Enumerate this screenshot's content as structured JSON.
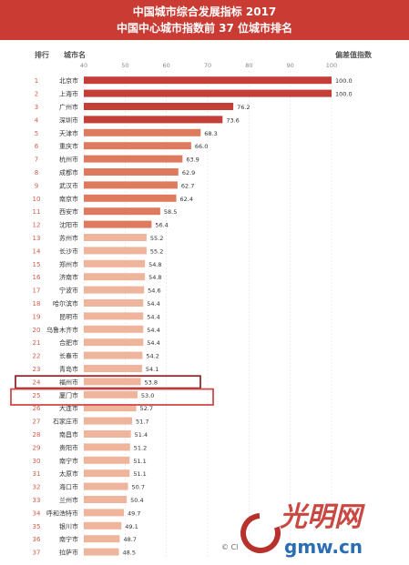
{
  "chart_data": {
    "type": "bar",
    "orientation": "horizontal",
    "title": "中国城市综合发展指标 2017",
    "subtitle": "中国中心城市指数前 37 位城市排名",
    "rank_header": "排行",
    "category_header": "城市名",
    "value_header": "偏差值指数",
    "xlim": [
      40,
      100
    ],
    "x_ticks": [
      40,
      50,
      60,
      70,
      80,
      90,
      100
    ],
    "grid": true,
    "ranks": [
      1,
      2,
      3,
      4,
      5,
      6,
      7,
      8,
      9,
      10,
      11,
      12,
      13,
      14,
      15,
      16,
      17,
      18,
      19,
      20,
      21,
      22,
      23,
      24,
      25,
      26,
      27,
      28,
      29,
      30,
      31,
      32,
      33,
      34,
      35,
      36,
      37
    ],
    "categories": [
      "北京市",
      "上海市",
      "广州市",
      "深圳市",
      "天津市",
      "重庆市",
      "杭州市",
      "成都市",
      "武汉市",
      "南京市",
      "西安市",
      "沈阳市",
      "苏州市",
      "长沙市",
      "郑州市",
      "济南市",
      "宁波市",
      "哈尔滨市",
      "昆明市",
      "乌鲁木齐市",
      "合肥市",
      "长春市",
      "青岛市",
      "福州市",
      "厦门市",
      "大连市",
      "石家庄市",
      "南昌市",
      "贵阳市",
      "南宁市",
      "太原市",
      "海口市",
      "兰州市",
      "呼和浩特市",
      "银川市",
      "南宁市",
      "拉萨市"
    ],
    "values": [
      100.0,
      100.0,
      76.2,
      73.6,
      68.3,
      66.0,
      63.9,
      62.9,
      62.7,
      62.4,
      58.5,
      56.4,
      55.2,
      55.2,
      54.8,
      54.8,
      54.6,
      54.4,
      54.4,
      54.4,
      54.4,
      54.2,
      54.1,
      53.8,
      53.0,
      52.7,
      51.7,
      51.4,
      51.2,
      51.1,
      51.1,
      50.7,
      50.4,
      49.7,
      49.1,
      48.7,
      48.5
    ],
    "value_labels": [
      "100.0",
      "100.0",
      "76.2",
      "73.6",
      "68.3",
      "66.0",
      "63.9",
      "62.9",
      "62.7",
      "62.4",
      "58.5",
      "56.4",
      "55.2",
      "55.2",
      "54.8",
      "54.8",
      "54.6",
      "54.4",
      "54.4",
      "54.4",
      "54.4",
      "54.2",
      "54.1",
      "53.8",
      "53.0",
      "52.7",
      "51.7",
      "51.4",
      "51.2",
      "51.1",
      "51.1",
      "50.7",
      "50.4",
      "49.7",
      "49.1",
      "48.7",
      "48.5"
    ],
    "highlighted_ranks": [
      24,
      25
    ],
    "colors": {
      "header_bg": "#c93b33",
      "bar_top": "#c43f38",
      "bar_mid": "#de7b5f",
      "bar_low": "#eeb59c",
      "rank_text": "#d25b4a",
      "highlight_box": "#8c2a2a",
      "highlight_box_2": "#d04a4a"
    }
  },
  "credit": "© Cl",
  "watermark": {
    "logo_text": "光明网",
    "domain_text": "gmw.cn"
  }
}
